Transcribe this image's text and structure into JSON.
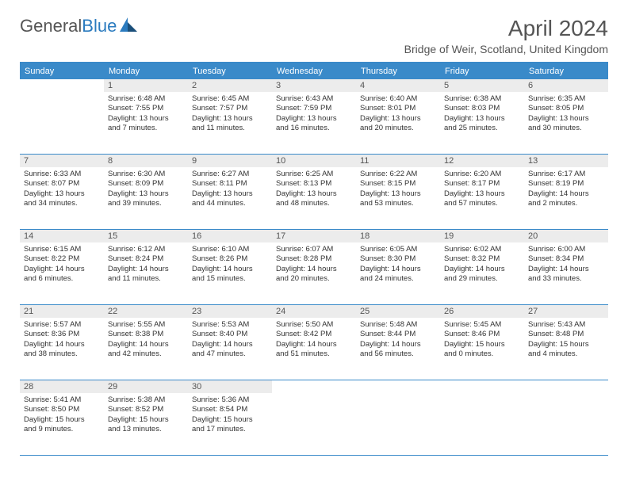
{
  "logo": {
    "text1": "General",
    "text2": "Blue"
  },
  "title": "April 2024",
  "location": "Bridge of Weir, Scotland, United Kingdom",
  "colors": {
    "header_bg": "#3a8ac9",
    "header_text": "#ffffff",
    "daynum_bg": "#ececec",
    "text": "#333333",
    "title": "#555555"
  },
  "weekdays": [
    "Sunday",
    "Monday",
    "Tuesday",
    "Wednesday",
    "Thursday",
    "Friday",
    "Saturday"
  ],
  "weeks": [
    [
      {
        "num": "",
        "sunrise": "",
        "sunset": "",
        "daylight1": "",
        "daylight2": ""
      },
      {
        "num": "1",
        "sunrise": "Sunrise: 6:48 AM",
        "sunset": "Sunset: 7:55 PM",
        "daylight1": "Daylight: 13 hours",
        "daylight2": "and 7 minutes."
      },
      {
        "num": "2",
        "sunrise": "Sunrise: 6:45 AM",
        "sunset": "Sunset: 7:57 PM",
        "daylight1": "Daylight: 13 hours",
        "daylight2": "and 11 minutes."
      },
      {
        "num": "3",
        "sunrise": "Sunrise: 6:43 AM",
        "sunset": "Sunset: 7:59 PM",
        "daylight1": "Daylight: 13 hours",
        "daylight2": "and 16 minutes."
      },
      {
        "num": "4",
        "sunrise": "Sunrise: 6:40 AM",
        "sunset": "Sunset: 8:01 PM",
        "daylight1": "Daylight: 13 hours",
        "daylight2": "and 20 minutes."
      },
      {
        "num": "5",
        "sunrise": "Sunrise: 6:38 AM",
        "sunset": "Sunset: 8:03 PM",
        "daylight1": "Daylight: 13 hours",
        "daylight2": "and 25 minutes."
      },
      {
        "num": "6",
        "sunrise": "Sunrise: 6:35 AM",
        "sunset": "Sunset: 8:05 PM",
        "daylight1": "Daylight: 13 hours",
        "daylight2": "and 30 minutes."
      }
    ],
    [
      {
        "num": "7",
        "sunrise": "Sunrise: 6:33 AM",
        "sunset": "Sunset: 8:07 PM",
        "daylight1": "Daylight: 13 hours",
        "daylight2": "and 34 minutes."
      },
      {
        "num": "8",
        "sunrise": "Sunrise: 6:30 AM",
        "sunset": "Sunset: 8:09 PM",
        "daylight1": "Daylight: 13 hours",
        "daylight2": "and 39 minutes."
      },
      {
        "num": "9",
        "sunrise": "Sunrise: 6:27 AM",
        "sunset": "Sunset: 8:11 PM",
        "daylight1": "Daylight: 13 hours",
        "daylight2": "and 44 minutes."
      },
      {
        "num": "10",
        "sunrise": "Sunrise: 6:25 AM",
        "sunset": "Sunset: 8:13 PM",
        "daylight1": "Daylight: 13 hours",
        "daylight2": "and 48 minutes."
      },
      {
        "num": "11",
        "sunrise": "Sunrise: 6:22 AM",
        "sunset": "Sunset: 8:15 PM",
        "daylight1": "Daylight: 13 hours",
        "daylight2": "and 53 minutes."
      },
      {
        "num": "12",
        "sunrise": "Sunrise: 6:20 AM",
        "sunset": "Sunset: 8:17 PM",
        "daylight1": "Daylight: 13 hours",
        "daylight2": "and 57 minutes."
      },
      {
        "num": "13",
        "sunrise": "Sunrise: 6:17 AM",
        "sunset": "Sunset: 8:19 PM",
        "daylight1": "Daylight: 14 hours",
        "daylight2": "and 2 minutes."
      }
    ],
    [
      {
        "num": "14",
        "sunrise": "Sunrise: 6:15 AM",
        "sunset": "Sunset: 8:22 PM",
        "daylight1": "Daylight: 14 hours",
        "daylight2": "and 6 minutes."
      },
      {
        "num": "15",
        "sunrise": "Sunrise: 6:12 AM",
        "sunset": "Sunset: 8:24 PM",
        "daylight1": "Daylight: 14 hours",
        "daylight2": "and 11 minutes."
      },
      {
        "num": "16",
        "sunrise": "Sunrise: 6:10 AM",
        "sunset": "Sunset: 8:26 PM",
        "daylight1": "Daylight: 14 hours",
        "daylight2": "and 15 minutes."
      },
      {
        "num": "17",
        "sunrise": "Sunrise: 6:07 AM",
        "sunset": "Sunset: 8:28 PM",
        "daylight1": "Daylight: 14 hours",
        "daylight2": "and 20 minutes."
      },
      {
        "num": "18",
        "sunrise": "Sunrise: 6:05 AM",
        "sunset": "Sunset: 8:30 PM",
        "daylight1": "Daylight: 14 hours",
        "daylight2": "and 24 minutes."
      },
      {
        "num": "19",
        "sunrise": "Sunrise: 6:02 AM",
        "sunset": "Sunset: 8:32 PM",
        "daylight1": "Daylight: 14 hours",
        "daylight2": "and 29 minutes."
      },
      {
        "num": "20",
        "sunrise": "Sunrise: 6:00 AM",
        "sunset": "Sunset: 8:34 PM",
        "daylight1": "Daylight: 14 hours",
        "daylight2": "and 33 minutes."
      }
    ],
    [
      {
        "num": "21",
        "sunrise": "Sunrise: 5:57 AM",
        "sunset": "Sunset: 8:36 PM",
        "daylight1": "Daylight: 14 hours",
        "daylight2": "and 38 minutes."
      },
      {
        "num": "22",
        "sunrise": "Sunrise: 5:55 AM",
        "sunset": "Sunset: 8:38 PM",
        "daylight1": "Daylight: 14 hours",
        "daylight2": "and 42 minutes."
      },
      {
        "num": "23",
        "sunrise": "Sunrise: 5:53 AM",
        "sunset": "Sunset: 8:40 PM",
        "daylight1": "Daylight: 14 hours",
        "daylight2": "and 47 minutes."
      },
      {
        "num": "24",
        "sunrise": "Sunrise: 5:50 AM",
        "sunset": "Sunset: 8:42 PM",
        "daylight1": "Daylight: 14 hours",
        "daylight2": "and 51 minutes."
      },
      {
        "num": "25",
        "sunrise": "Sunrise: 5:48 AM",
        "sunset": "Sunset: 8:44 PM",
        "daylight1": "Daylight: 14 hours",
        "daylight2": "and 56 minutes."
      },
      {
        "num": "26",
        "sunrise": "Sunrise: 5:45 AM",
        "sunset": "Sunset: 8:46 PM",
        "daylight1": "Daylight: 15 hours",
        "daylight2": "and 0 minutes."
      },
      {
        "num": "27",
        "sunrise": "Sunrise: 5:43 AM",
        "sunset": "Sunset: 8:48 PM",
        "daylight1": "Daylight: 15 hours",
        "daylight2": "and 4 minutes."
      }
    ],
    [
      {
        "num": "28",
        "sunrise": "Sunrise: 5:41 AM",
        "sunset": "Sunset: 8:50 PM",
        "daylight1": "Daylight: 15 hours",
        "daylight2": "and 9 minutes."
      },
      {
        "num": "29",
        "sunrise": "Sunrise: 5:38 AM",
        "sunset": "Sunset: 8:52 PM",
        "daylight1": "Daylight: 15 hours",
        "daylight2": "and 13 minutes."
      },
      {
        "num": "30",
        "sunrise": "Sunrise: 5:36 AM",
        "sunset": "Sunset: 8:54 PM",
        "daylight1": "Daylight: 15 hours",
        "daylight2": "and 17 minutes."
      },
      {
        "num": "",
        "sunrise": "",
        "sunset": "",
        "daylight1": "",
        "daylight2": ""
      },
      {
        "num": "",
        "sunrise": "",
        "sunset": "",
        "daylight1": "",
        "daylight2": ""
      },
      {
        "num": "",
        "sunrise": "",
        "sunset": "",
        "daylight1": "",
        "daylight2": ""
      },
      {
        "num": "",
        "sunrise": "",
        "sunset": "",
        "daylight1": "",
        "daylight2": ""
      }
    ]
  ]
}
